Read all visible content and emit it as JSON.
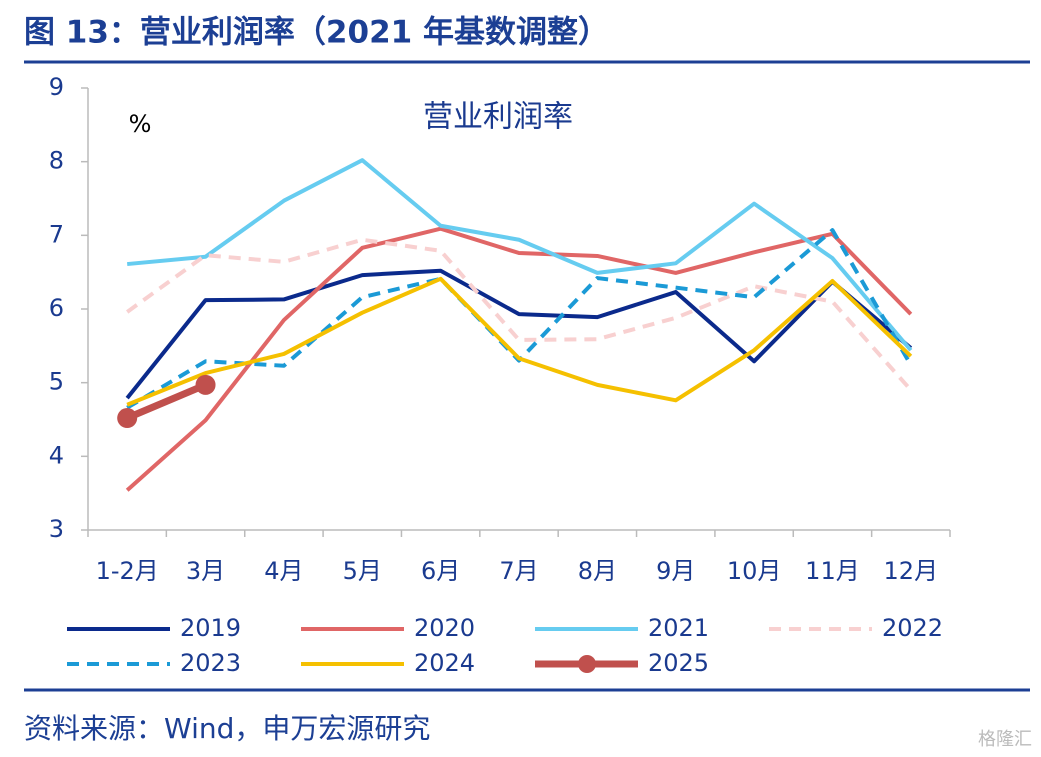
{
  "header": {
    "title": "图 13：营业利润率（2021 年基数调整）"
  },
  "chart_data": {
    "type": "line",
    "title": "营业利润率",
    "y_unit": "%",
    "categories": [
      "1-2月",
      "3月",
      "4月",
      "5月",
      "6月",
      "7月",
      "8月",
      "9月",
      "10月",
      "11月",
      "12月"
    ],
    "ylim": [
      3,
      9
    ],
    "yticks": [
      3,
      4,
      5,
      6,
      7,
      8,
      9
    ],
    "series": [
      {
        "name": "2019",
        "color": "#0b2a8c",
        "dashed": false,
        "markers": false,
        "values": [
          4.79,
          6.12,
          6.13,
          6.46,
          6.52,
          5.93,
          5.89,
          6.23,
          5.29,
          6.37,
          5.47
        ]
      },
      {
        "name": "2020",
        "color": "#e06666",
        "dashed": false,
        "markers": false,
        "values": [
          3.54,
          4.49,
          5.85,
          6.83,
          7.09,
          6.76,
          6.72,
          6.49,
          6.77,
          7.02,
          5.93
        ]
      },
      {
        "name": "2021",
        "color": "#66ccf0",
        "dashed": false,
        "markers": false,
        "values": [
          6.61,
          6.71,
          7.47,
          8.02,
          7.13,
          6.94,
          6.49,
          6.62,
          7.43,
          6.69,
          5.44
        ]
      },
      {
        "name": "2022",
        "color": "#f8d0d0",
        "dashed": true,
        "markers": false,
        "values": [
          5.96,
          6.73,
          6.64,
          6.94,
          6.79,
          5.58,
          5.59,
          5.88,
          6.31,
          6.1,
          4.9
        ]
      },
      {
        "name": "2023",
        "color": "#1b9ad6",
        "dashed": true,
        "markers": false,
        "values": [
          4.66,
          5.29,
          5.23,
          6.16,
          6.41,
          5.3,
          6.42,
          6.29,
          6.16,
          7.07,
          5.24
        ]
      },
      {
        "name": "2024",
        "color": "#f5c000",
        "dashed": false,
        "markers": false,
        "values": [
          4.7,
          5.13,
          5.39,
          5.95,
          6.41,
          5.33,
          4.97,
          4.76,
          5.44,
          6.38,
          5.36
        ]
      },
      {
        "name": "2025",
        "color": "#c0504d",
        "dashed": false,
        "markers": true,
        "values": [
          4.52,
          4.97,
          null,
          null,
          null,
          null,
          null,
          null,
          null,
          null,
          null
        ]
      }
    ]
  },
  "footer": {
    "source": "资料来源：Wind，申万宏源研究",
    "watermark": "格隆汇"
  }
}
